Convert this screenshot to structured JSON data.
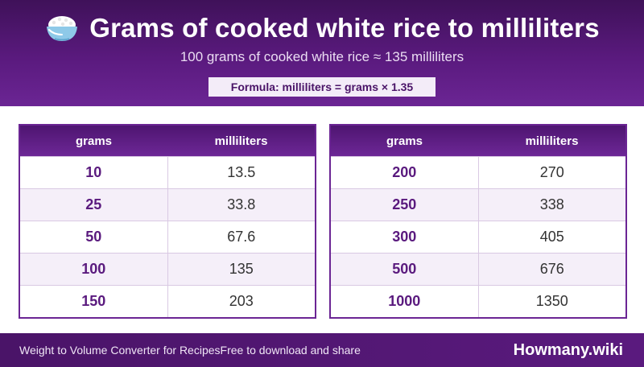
{
  "header": {
    "icon": "rice-bowl-icon",
    "title": "Grams of cooked white rice to milliliters",
    "subtitle": "100 grams of cooked white rice ≈ 135 milliliters",
    "formula": "Formula: milliliters = grams × 1.35"
  },
  "tables": [
    {
      "headers": [
        "grams",
        "milliliters"
      ],
      "rows": [
        [
          "10",
          "13.5"
        ],
        [
          "25",
          "33.8"
        ],
        [
          "50",
          "67.6"
        ],
        [
          "100",
          "135"
        ],
        [
          "150",
          "203"
        ]
      ]
    },
    {
      "headers": [
        "grams",
        "milliliters"
      ],
      "rows": [
        [
          "200",
          "270"
        ],
        [
          "250",
          "338"
        ],
        [
          "300",
          "405"
        ],
        [
          "500",
          "676"
        ],
        [
          "1000",
          "1350"
        ]
      ]
    }
  ],
  "footer": {
    "app_name": "Weight to Volume Converter for Recipes",
    "tagline": "Free to download and share",
    "brand": "Howmany.wiki"
  },
  "colors": {
    "header_bg": "#5a1a7e",
    "accent": "#6b2594",
    "grams_text": "#5a1a7e",
    "row_alt": "#f5eff9"
  }
}
